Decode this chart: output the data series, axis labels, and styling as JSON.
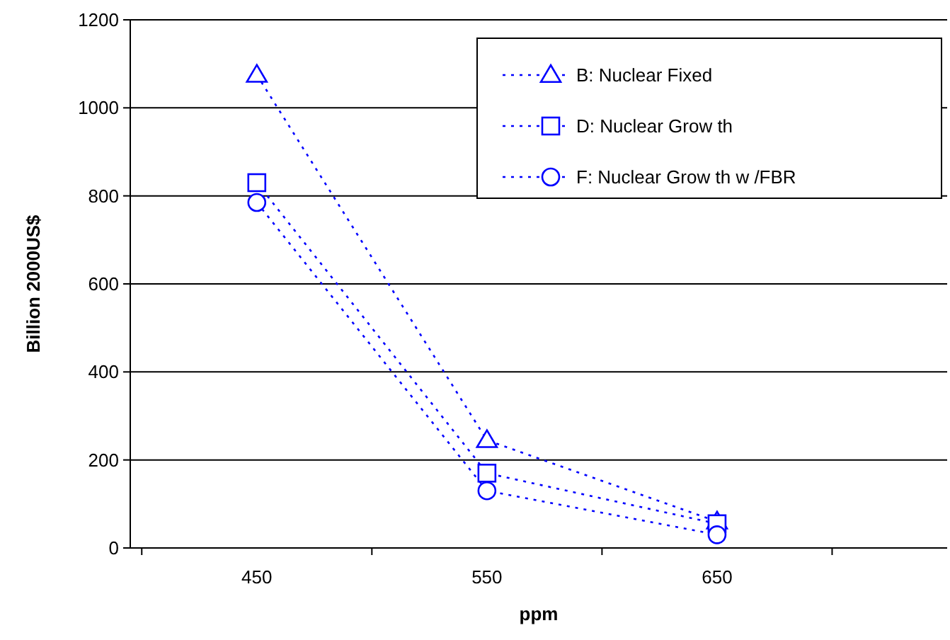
{
  "chart_data": {
    "type": "line",
    "xlabel": "ppm",
    "ylabel": "Billion 2000US$",
    "categories": [
      "450",
      "550",
      "650"
    ],
    "series": [
      {
        "name": "B: Nuclear Fixed",
        "color": "#0000ff",
        "marker": "triangle",
        "values": [
          1075,
          245,
          60
        ]
      },
      {
        "name": "D: Nuclear Grow th",
        "color": "#0000ff",
        "marker": "square",
        "values": [
          830,
          170,
          55
        ]
      },
      {
        "name": "F: Nuclear Grow th w /FBR",
        "color": "#0000ff",
        "marker": "circle",
        "values": [
          785,
          130,
          30
        ]
      }
    ],
    "ylim": [
      0,
      1200
    ],
    "yticks": [
      0,
      200,
      400,
      600,
      800,
      1000,
      1200
    ],
    "grid": "y",
    "legend": "top right",
    "line_style": "dotted"
  }
}
